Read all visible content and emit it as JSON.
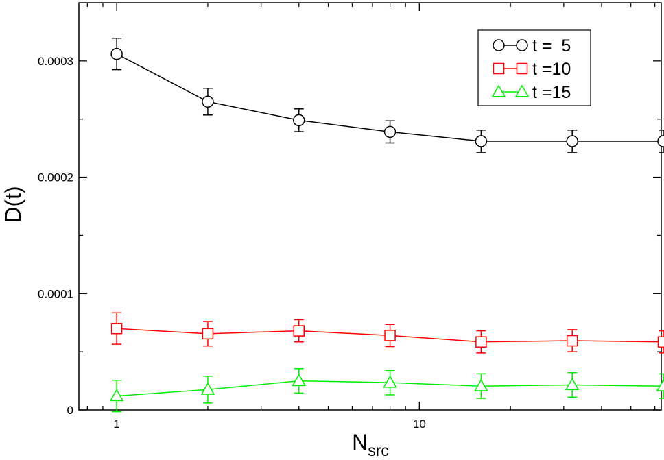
{
  "chart_data": {
    "type": "line",
    "xscale": "log",
    "xlim": [
      0.75,
      63
    ],
    "ylim": [
      0,
      0.00035
    ],
    "x_ticks": [
      {
        "value": 1,
        "label": "1"
      },
      {
        "value": 10,
        "label": "10"
      }
    ],
    "y_ticks": [
      {
        "value": 0,
        "label": "0"
      },
      {
        "value": 0.0001,
        "label": "0.0001"
      },
      {
        "value": 0.0002,
        "label": "0.0002"
      },
      {
        "value": 0.0003,
        "label": "0.0003"
      }
    ],
    "y_minor_ticks": [
      5e-05,
      0.00015,
      0.00025
    ],
    "ylabel": "D(t)",
    "xlabel": {
      "main": "N",
      "sub": "src"
    },
    "legend_position": "top-right",
    "grid": false,
    "x": [
      1,
      2,
      4,
      8,
      16,
      32,
      64
    ],
    "series": [
      {
        "name": "t =  5",
        "marker": "circle",
        "color": "#000000",
        "values": [
          0.000306,
          0.000265,
          0.000249,
          0.000239,
          0.000231,
          0.000231,
          0.000231
        ],
        "errors": [
          1.35e-05,
          1.15e-05,
          9.8e-06,
          9.5e-06,
          9.5e-06,
          9.5e-06,
          9.5e-06
        ]
      },
      {
        "name": "t =10",
        "marker": "square",
        "color": "#ff0000",
        "values": [
          7e-05,
          6.55e-05,
          6.8e-05,
          6.4e-05,
          5.85e-05,
          5.95e-05,
          5.85e-05
        ],
        "errors": [
          1.35e-05,
          1.05e-05,
          9.5e-06,
          9.5e-06,
          9.5e-06,
          9.5e-06,
          9.5e-06
        ]
      },
      {
        "name": "t =15",
        "marker": "triangle",
        "color": "#00ee00",
        "values": [
          1.2e-05,
          1.75e-05,
          2.5e-05,
          2.35e-05,
          2.05e-05,
          2.15e-05,
          2.05e-05
        ],
        "errors": [
          1.35e-05,
          1.15e-05,
          1.05e-05,
          1.05e-05,
          1.05e-05,
          1.05e-05,
          1.05e-05
        ]
      }
    ]
  }
}
